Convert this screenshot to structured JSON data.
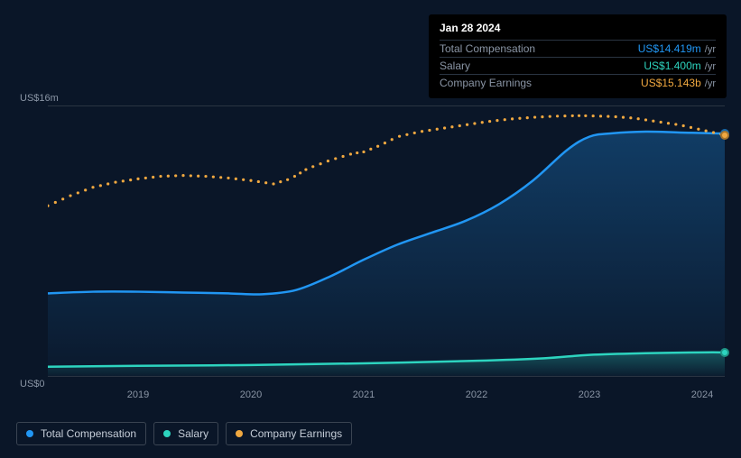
{
  "tooltip": {
    "date": "Jan 28 2024",
    "rows": [
      {
        "label": "Total Compensation",
        "amount": "US$14.419m",
        "unit": "/yr",
        "color": "#2196f3"
      },
      {
        "label": "Salary",
        "amount": "US$1.400m",
        "unit": "/yr",
        "color": "#2dd4bf"
      },
      {
        "label": "Company Earnings",
        "amount": "US$15.143b",
        "unit": "/yr",
        "color": "#f0a840"
      }
    ]
  },
  "chart": {
    "type": "line-area",
    "background_color": "#0a1628",
    "grid_color": "#2a3442",
    "text_color": "#8a95a5",
    "y_axis": {
      "top_label": "US$16m",
      "bottom_label": "US$0",
      "min": 0,
      "max": 16
    },
    "x_axis": {
      "min": 2018.2,
      "max": 2024.2,
      "ticks": [
        {
          "value": 2019,
          "label": "2019"
        },
        {
          "value": 2020,
          "label": "2020"
        },
        {
          "value": 2021,
          "label": "2021"
        },
        {
          "value": 2022,
          "label": "2022"
        },
        {
          "value": 2023,
          "label": "2023"
        },
        {
          "value": 2024,
          "label": "2024"
        }
      ]
    },
    "series": [
      {
        "name": "Total Compensation",
        "color": "#2196f3",
        "style": "area-line",
        "line_width": 2.5,
        "fill_opacity_top": 0.3,
        "fill_opacity_bottom": 0.02,
        "end_marker": true,
        "points": [
          [
            2018.2,
            4.9
          ],
          [
            2018.6,
            5.0
          ],
          [
            2019.0,
            5.0
          ],
          [
            2019.4,
            4.95
          ],
          [
            2019.8,
            4.9
          ],
          [
            2020.1,
            4.85
          ],
          [
            2020.4,
            5.1
          ],
          [
            2020.7,
            5.9
          ],
          [
            2021.0,
            6.9
          ],
          [
            2021.3,
            7.8
          ],
          [
            2021.6,
            8.5
          ],
          [
            2021.9,
            9.2
          ],
          [
            2022.2,
            10.2
          ],
          [
            2022.5,
            11.6
          ],
          [
            2022.8,
            13.4
          ],
          [
            2023.0,
            14.2
          ],
          [
            2023.2,
            14.4
          ],
          [
            2023.5,
            14.5
          ],
          [
            2023.8,
            14.45
          ],
          [
            2024.1,
            14.4
          ],
          [
            2024.2,
            14.4
          ]
        ]
      },
      {
        "name": "Salary",
        "color": "#2dd4bf",
        "style": "area-line",
        "line_width": 2.5,
        "fill_opacity_top": 0.3,
        "fill_opacity_bottom": 0.02,
        "end_marker": true,
        "points": [
          [
            2018.2,
            0.55
          ],
          [
            2019.0,
            0.6
          ],
          [
            2020.0,
            0.65
          ],
          [
            2021.0,
            0.75
          ],
          [
            2022.0,
            0.9
          ],
          [
            2022.6,
            1.05
          ],
          [
            2023.0,
            1.25
          ],
          [
            2023.5,
            1.35
          ],
          [
            2024.0,
            1.4
          ],
          [
            2024.2,
            1.4
          ]
        ]
      },
      {
        "name": "Company Earnings",
        "color": "#f0a840",
        "style": "dotted",
        "dot_radius": 1.6,
        "dot_gap": 7,
        "end_marker": true,
        "points": [
          [
            2018.2,
            10.1
          ],
          [
            2018.4,
            10.7
          ],
          [
            2018.6,
            11.2
          ],
          [
            2018.8,
            11.5
          ],
          [
            2019.0,
            11.7
          ],
          [
            2019.2,
            11.85
          ],
          [
            2019.4,
            11.9
          ],
          [
            2019.6,
            11.85
          ],
          [
            2019.8,
            11.75
          ],
          [
            2020.0,
            11.6
          ],
          [
            2020.2,
            11.4
          ],
          [
            2020.35,
            11.7
          ],
          [
            2020.5,
            12.3
          ],
          [
            2020.7,
            12.8
          ],
          [
            2020.9,
            13.2
          ],
          [
            2021.0,
            13.3
          ],
          [
            2021.15,
            13.7
          ],
          [
            2021.3,
            14.2
          ],
          [
            2021.5,
            14.5
          ],
          [
            2021.7,
            14.7
          ],
          [
            2021.9,
            14.9
          ],
          [
            2022.1,
            15.1
          ],
          [
            2022.3,
            15.25
          ],
          [
            2022.5,
            15.35
          ],
          [
            2022.7,
            15.42
          ],
          [
            2022.9,
            15.45
          ],
          [
            2023.0,
            15.44
          ],
          [
            2023.2,
            15.4
          ],
          [
            2023.4,
            15.3
          ],
          [
            2023.6,
            15.1
          ],
          [
            2023.8,
            14.9
          ],
          [
            2024.0,
            14.6
          ],
          [
            2024.2,
            14.3
          ]
        ]
      }
    ]
  },
  "legend": {
    "items": [
      {
        "label": "Total Compensation",
        "color": "#2196f3"
      },
      {
        "label": "Salary",
        "color": "#2dd4bf"
      },
      {
        "label": "Company Earnings",
        "color": "#f0a840"
      }
    ]
  }
}
